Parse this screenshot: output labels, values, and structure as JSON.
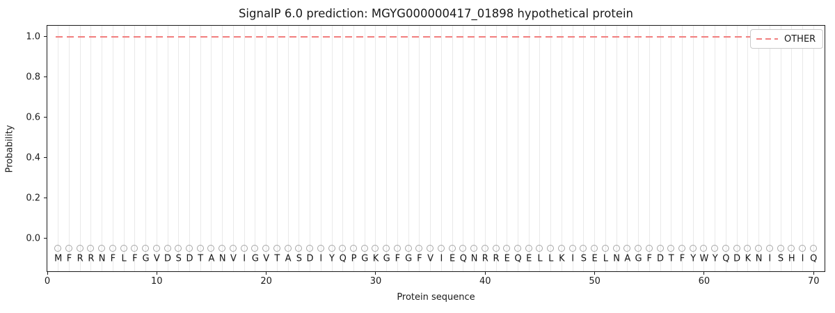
{
  "figure": {
    "title": "SignalP 6.0 prediction: MGYG000000417_01898 hypothetical protein",
    "xlabel": "Protein sequence",
    "ylabel": "Probability"
  },
  "colors": {
    "other_line": "#f17e7e",
    "gridline": "#e9e9e9",
    "marker_stroke": "#a6a6a6",
    "spine": "#1a1a1a",
    "background": "#ffffff"
  },
  "chart_data": {
    "type": "line",
    "title": "SignalP 6.0 prediction: MGYG000000417_01898 hypothetical protein",
    "xlabel": "Protein sequence",
    "ylabel": "Probability",
    "xlim": [
      0,
      71
    ],
    "ylim": [
      -0.162,
      1.054
    ],
    "grid": "vertical-per-residue",
    "legend_position": "upper right",
    "xticks": [
      {
        "v": 0,
        "label": "0"
      },
      {
        "v": 10,
        "label": "10"
      },
      {
        "v": 20,
        "label": "20"
      },
      {
        "v": 30,
        "label": "30"
      },
      {
        "v": 40,
        "label": "40"
      },
      {
        "v": 50,
        "label": "50"
      },
      {
        "v": 60,
        "label": "60"
      },
      {
        "v": 70,
        "label": "70"
      }
    ],
    "yticks": [
      {
        "v": 0.0,
        "label": "0.0"
      },
      {
        "v": 0.2,
        "label": "0.2"
      },
      {
        "v": 0.4,
        "label": "0.4"
      },
      {
        "v": 0.6,
        "label": "0.6"
      },
      {
        "v": 0.8,
        "label": "0.8"
      },
      {
        "v": 1.0,
        "label": "1.0"
      }
    ],
    "sequence": "MFRRNFLFGVDSDTANVIGVTASDIYQPGKGFGFVIEQNRREQELLKISELNAGFDTFYWYQDKNISHIQ",
    "sequence_row_y": -0.1,
    "marker_row": {
      "y": -0.05,
      "style": "open-circle",
      "color": "#a6a6a6"
    },
    "series": [
      {
        "name": "OTHER",
        "type": "line",
        "linestyle": "dashed",
        "color": "#f17e7e",
        "x": [
          1,
          2,
          3,
          4,
          5,
          6,
          7,
          8,
          9,
          10,
          11,
          12,
          13,
          14,
          15,
          16,
          17,
          18,
          19,
          20,
          21,
          22,
          23,
          24,
          25,
          26,
          27,
          28,
          29,
          30,
          31,
          32,
          33,
          34,
          35,
          36,
          37,
          38,
          39,
          40,
          41,
          42,
          43,
          44,
          45,
          46,
          47,
          48,
          49,
          50,
          51,
          52,
          53,
          54,
          55,
          56,
          57,
          58,
          59,
          60,
          61,
          62,
          63,
          64,
          65,
          66,
          67,
          68,
          69,
          70
        ],
        "values": [
          1.0,
          1.0,
          1.0,
          1.0,
          1.0,
          1.0,
          1.0,
          1.0,
          1.0,
          1.0,
          1.0,
          1.0,
          1.0,
          1.0,
          1.0,
          1.0,
          1.0,
          1.0,
          1.0,
          1.0,
          1.0,
          1.0,
          1.0,
          1.0,
          1.0,
          1.0,
          1.0,
          1.0,
          1.0,
          1.0,
          1.0,
          1.0,
          1.0,
          1.0,
          1.0,
          1.0,
          1.0,
          1.0,
          1.0,
          1.0,
          1.0,
          1.0,
          1.0,
          1.0,
          1.0,
          1.0,
          1.0,
          1.0,
          1.0,
          1.0,
          1.0,
          1.0,
          1.0,
          1.0,
          1.0,
          1.0,
          1.0,
          1.0,
          1.0,
          1.0,
          1.0,
          1.0,
          1.0,
          1.0,
          1.0,
          1.0,
          1.0,
          1.0,
          1.0,
          1.0
        ]
      }
    ]
  }
}
